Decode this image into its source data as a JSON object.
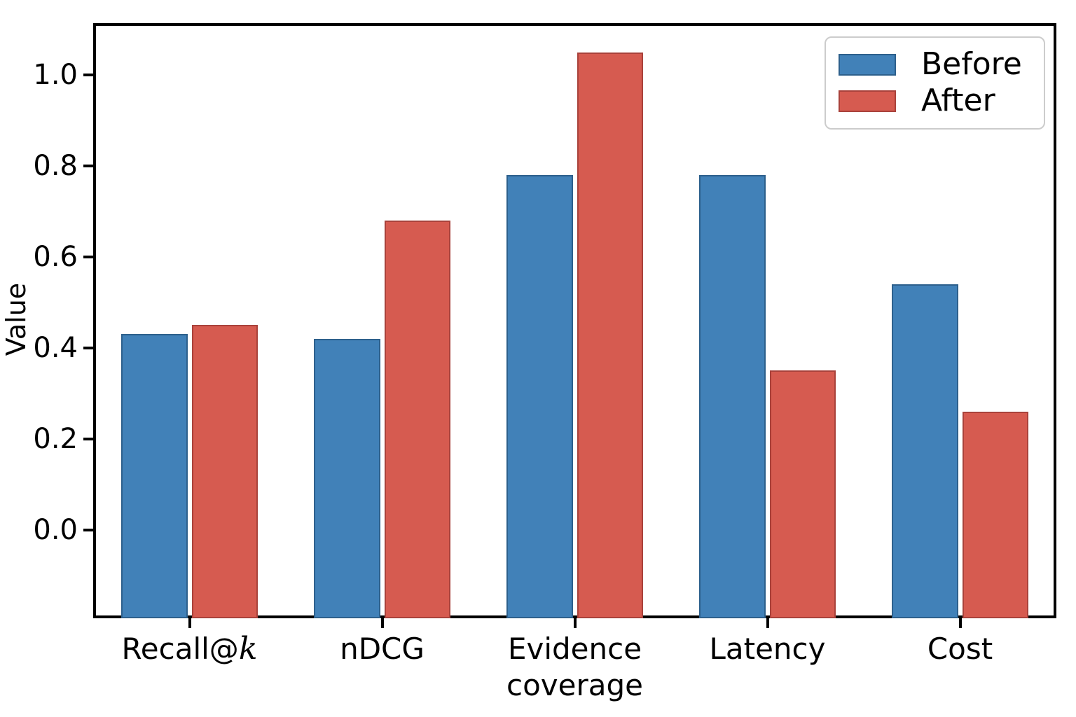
{
  "figure": {
    "background": "#ffffff",
    "axis_color": "#000000",
    "text_color": "#000000"
  },
  "chart_data": {
    "type": "bar",
    "title": "",
    "xlabel": "",
    "ylabel": "Value",
    "categories": [
      {
        "label": "Recall@",
        "italic": "k"
      },
      {
        "label": "nDCG",
        "italic": ""
      },
      {
        "label": "Evidence coverage",
        "italic": ""
      },
      {
        "label": "Latency",
        "italic": ""
      },
      {
        "label": "Cost",
        "italic": ""
      }
    ],
    "series": [
      {
        "name": "Before",
        "color": "#4181b8",
        "edge_color": "#2d608c",
        "values": [
          0.43,
          0.42,
          0.78,
          0.78,
          0.54
        ]
      },
      {
        "name": "After",
        "color": "#d65b50",
        "edge_color": "#a9423b",
        "values": [
          0.45,
          0.68,
          1.05,
          0.35,
          0.26
        ]
      }
    ],
    "ylim": [
      -0.194,
      1.114
    ],
    "yticks": [
      0.0,
      0.2,
      0.4,
      0.6,
      0.8,
      1.0
    ],
    "ytick_labels": [
      "0.0",
      "0.2",
      "0.4",
      "0.6",
      "0.8",
      "1.0"
    ],
    "bars_from_axis_bottom": true,
    "grid": false,
    "bar_group_width_fraction": 0.345,
    "legend": {
      "position": "top-right"
    }
  }
}
